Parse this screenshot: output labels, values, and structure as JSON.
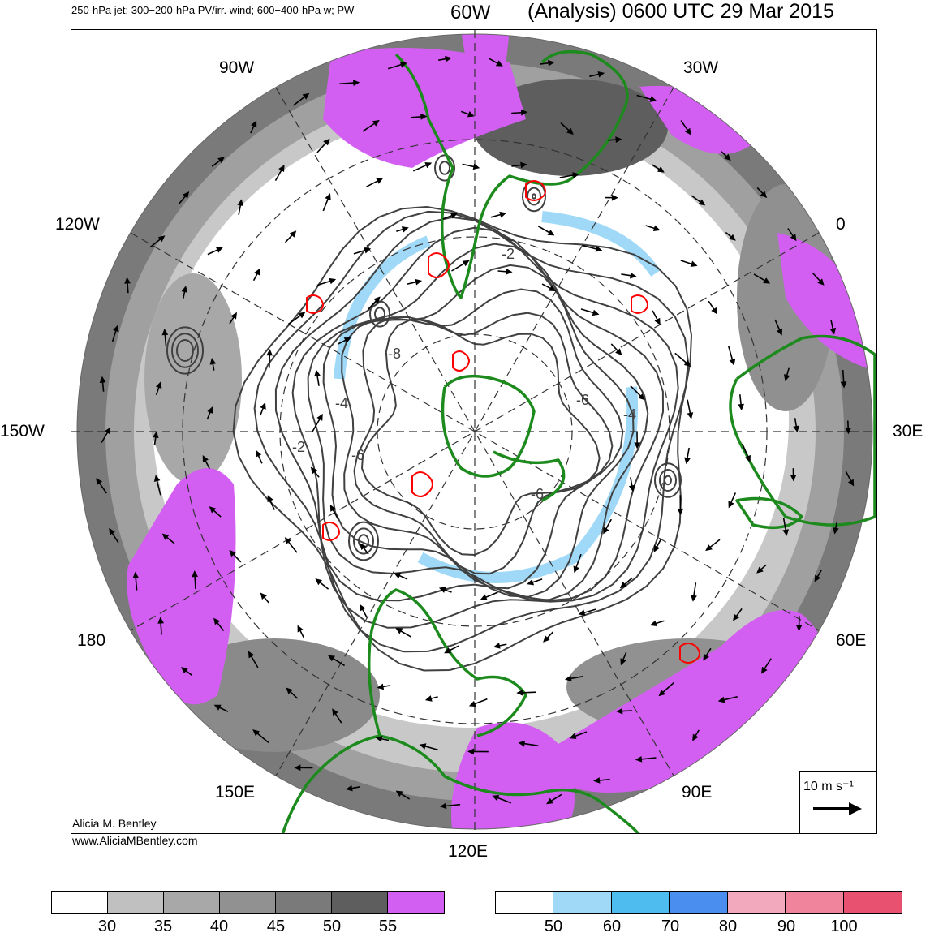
{
  "header": {
    "fields": "250-hPa jet; 300−200-hPa PV/irr. wind; 600−400-hPa w; PW",
    "top_meridian": "60W",
    "title": "(Analysis) 0600 UTC 29 Mar 2015"
  },
  "map": {
    "projection": "north polar stereographic",
    "meridian_labels": [
      "90W",
      "30W",
      "120W",
      "0",
      "150W",
      "30E",
      "180",
      "60E",
      "150E",
      "90E",
      "120E"
    ],
    "contour_labels": [
      "-2",
      "-8",
      "-4",
      "-6",
      "-2",
      "-6",
      "-6",
      "-4"
    ],
    "colors": {
      "coastline": "#1c8a1c",
      "pv_contour": "#404040",
      "ascent": "#ff0000",
      "pw_high": "#d35ff2",
      "wind_arrow": "#000000"
    }
  },
  "reference_vector": {
    "label": "10 m s⁻¹"
  },
  "credits": {
    "author": "Alicia M. Bentley",
    "website": "www.AliciaMBentley.com"
  },
  "colorbars": {
    "jet": {
      "colors": [
        "#ffffff",
        "#c0c0c0",
        "#a8a8a8",
        "#919191",
        "#7a7a7a",
        "#5e5e5e",
        "#d35ff2"
      ],
      "ticks": [
        "30",
        "35",
        "40",
        "45",
        "50",
        "55"
      ]
    },
    "pw": {
      "colors": [
        "#ffffff",
        "#9fd9f7",
        "#4fbcf0",
        "#4a8ff0",
        "#f2a8bd",
        "#ef849c",
        "#e8516f"
      ],
      "ticks": [
        "50",
        "60",
        "70",
        "80",
        "90",
        "100"
      ]
    }
  }
}
